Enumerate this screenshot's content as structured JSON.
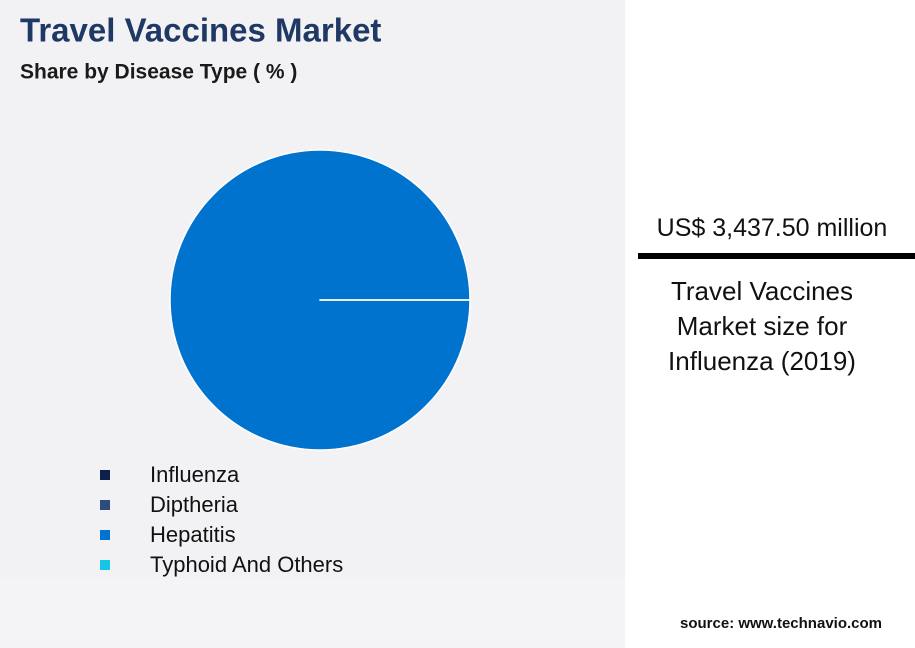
{
  "chart_data": {
    "type": "pie",
    "title": "Travel Vaccines Market",
    "subtitle": "Share by Disease Type ( % )",
    "categories": [
      "Influenza",
      "Diptheria",
      "Hepatitis",
      "Typhoid And Others"
    ],
    "values": [
      0,
      0,
      100,
      0
    ],
    "colors": [
      "#0d1f4a",
      "#2f4a7c",
      "#0073cf",
      "#16c4e6"
    ]
  },
  "callout": {
    "value": "US$ 3,437.50 million",
    "caption": "Travel Vaccines Market size for Influenza (2019)"
  },
  "source": "source: www.technavio.com"
}
